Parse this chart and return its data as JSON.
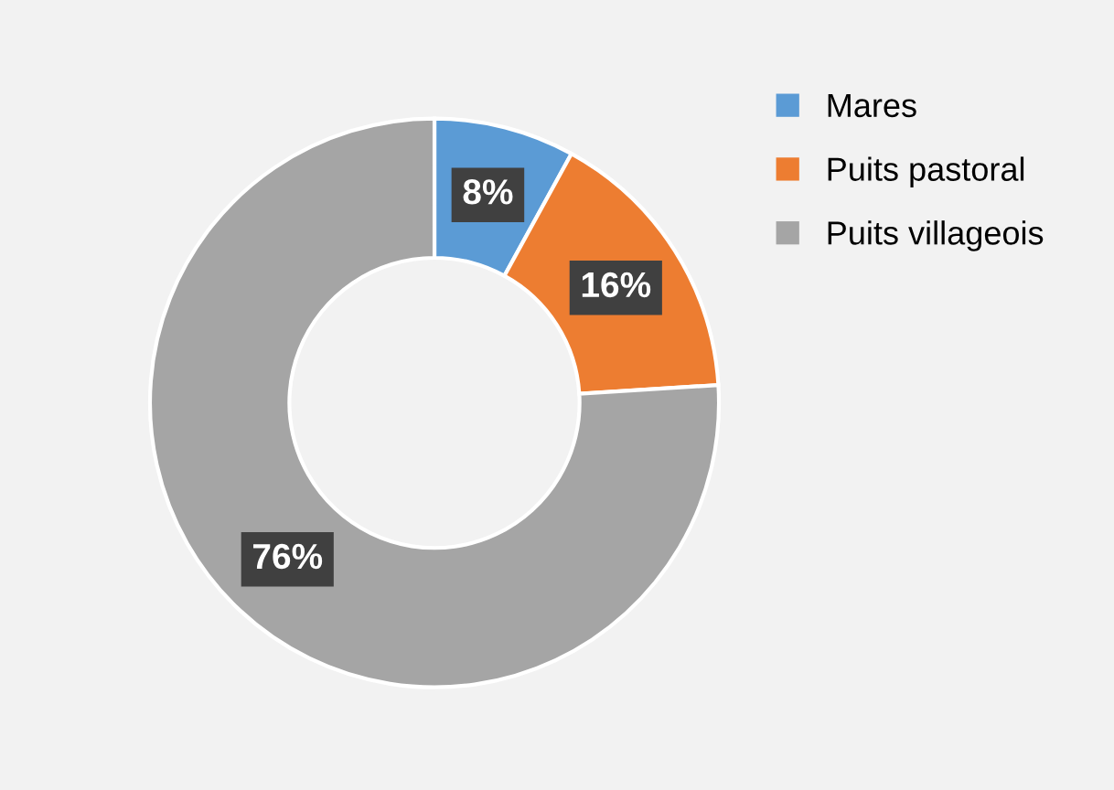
{
  "chart_data": {
    "type": "donut",
    "categories": [
      "Mares",
      "Puits pastoral",
      "Puits villageois"
    ],
    "values": [
      8,
      16,
      76
    ],
    "colors": [
      "#5b9bd5",
      "#ed7d31",
      "#a5a5a5"
    ],
    "value_labels": [
      "8%",
      "16%",
      "76%"
    ],
    "legend": "top right"
  }
}
